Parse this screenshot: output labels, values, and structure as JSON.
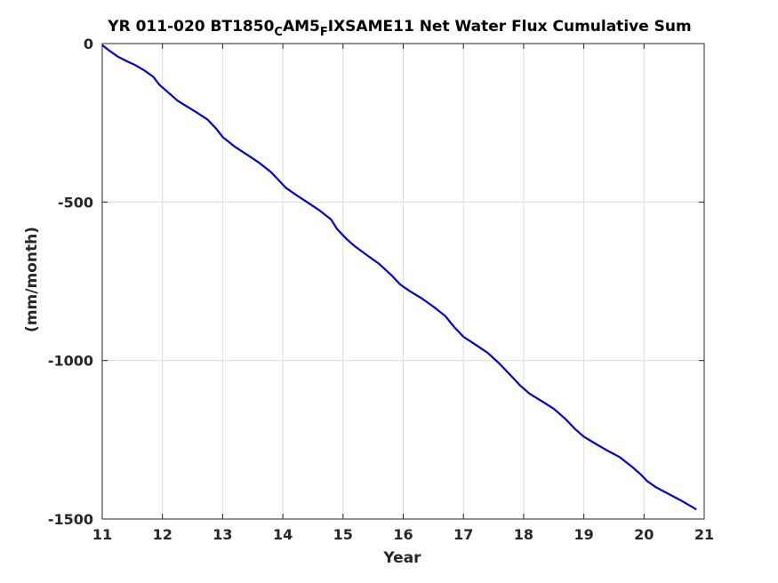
{
  "chart_data": {
    "type": "line",
    "title": {
      "parts": [
        {
          "text": "YR 011-020 BT1850",
          "sub": false
        },
        {
          "text": "C",
          "sub": true
        },
        {
          "text": "AM5",
          "sub": false
        },
        {
          "text": "F",
          "sub": true
        },
        {
          "text": "IXSAME11 Net Water Flux Cumulative Sum",
          "sub": false
        }
      ]
    },
    "xlabel": "Year",
    "ylabel": "(mm/month)",
    "xlim": [
      11,
      21
    ],
    "ylim": [
      -1500,
      0
    ],
    "xticks": [
      11,
      12,
      13,
      14,
      15,
      16,
      17,
      18,
      19,
      20,
      21
    ],
    "yticks": [
      0,
      -500,
      -1000,
      -1500
    ],
    "grid": true,
    "series": [
      {
        "color": "#0000cd",
        "x": [
          11.0,
          11.1,
          11.25,
          11.4,
          11.55,
          11.7,
          11.85,
          11.95,
          12.1,
          12.25,
          12.4,
          12.55,
          12.75,
          12.9,
          13.0,
          13.2,
          13.4,
          13.6,
          13.8,
          13.95,
          14.05,
          14.2,
          14.4,
          14.6,
          14.8,
          14.9,
          15.05,
          15.2,
          15.4,
          15.6,
          15.8,
          15.95,
          16.1,
          16.3,
          16.5,
          16.7,
          16.85,
          17.0,
          17.2,
          17.4,
          17.6,
          17.8,
          17.95,
          18.1,
          18.3,
          18.5,
          18.7,
          18.85,
          19.0,
          19.2,
          19.4,
          19.6,
          19.8,
          19.95,
          20.05,
          20.2,
          20.4,
          20.6,
          20.8,
          20.87
        ],
        "y": [
          -5,
          -20,
          -40,
          -55,
          -68,
          -85,
          -105,
          -130,
          -155,
          -180,
          -198,
          -215,
          -240,
          -270,
          -295,
          -325,
          -350,
          -375,
          -405,
          -435,
          -455,
          -475,
          -500,
          -525,
          -555,
          -585,
          -615,
          -640,
          -668,
          -695,
          -730,
          -760,
          -780,
          -803,
          -830,
          -860,
          -895,
          -925,
          -950,
          -975,
          -1010,
          -1050,
          -1080,
          -1105,
          -1128,
          -1152,
          -1185,
          -1215,
          -1240,
          -1263,
          -1285,
          -1305,
          -1335,
          -1360,
          -1380,
          -1400,
          -1420,
          -1440,
          -1462,
          -1470
        ]
      }
    ]
  }
}
